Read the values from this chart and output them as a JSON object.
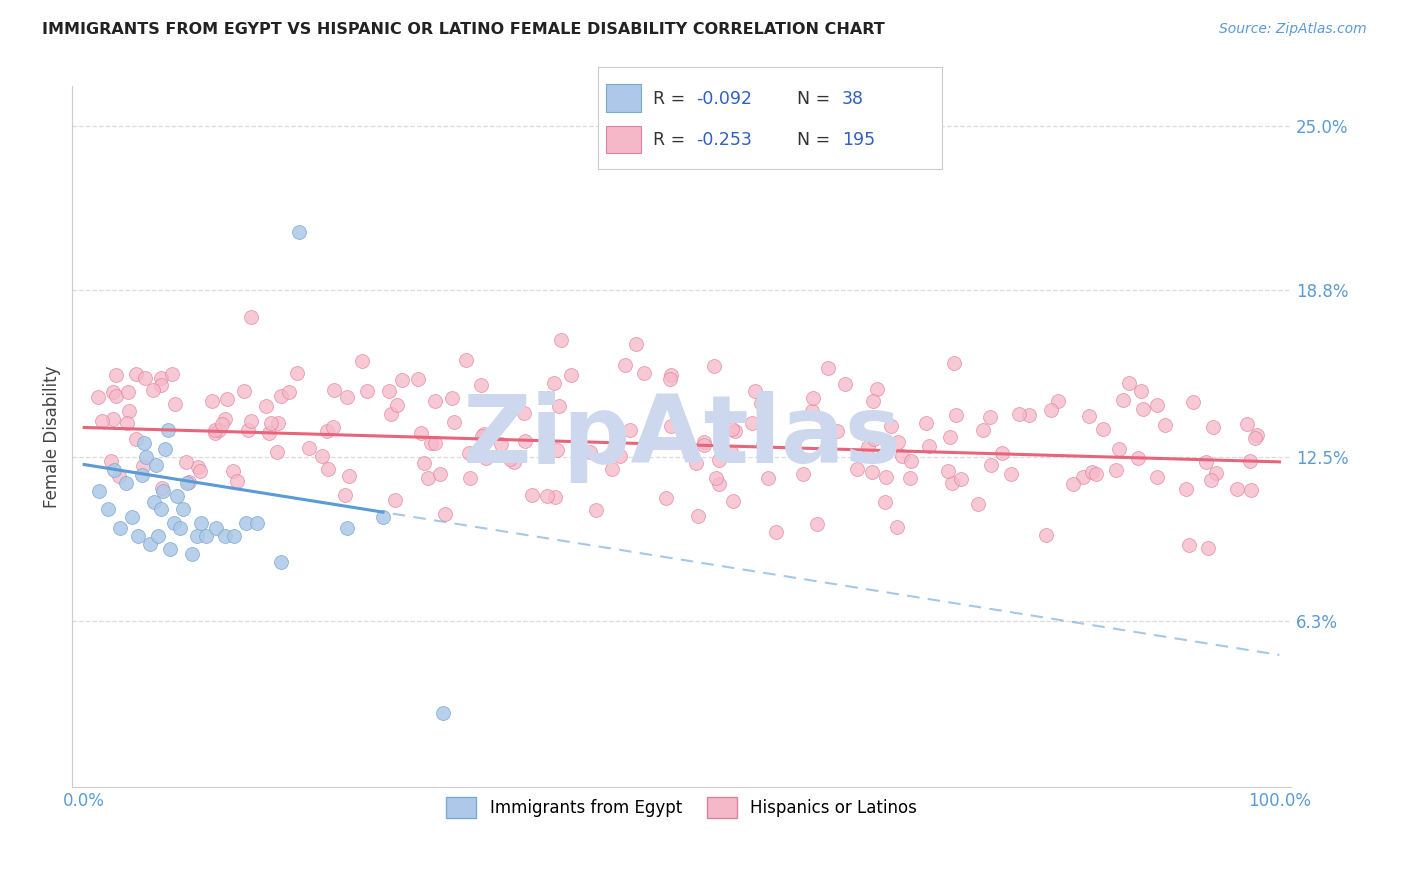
{
  "title": "IMMIGRANTS FROM EGYPT VS HISPANIC OR LATINO FEMALE DISABILITY CORRELATION CHART",
  "source": "Source: ZipAtlas.com",
  "ylabel": "Female Disability",
  "color_egypt": "#adc8e8",
  "color_hispanic": "#f5b8c8",
  "edge_egypt": "#7aaad0",
  "edge_hispanic": "#e080a0",
  "line_color_egypt": "#5b9bd5",
  "line_color_hispanic": "#e8647a",
  "watermark": "ZipAtlas",
  "watermark_color": "#cdd8ee",
  "legend_text_color": "#3060c0",
  "background_color": "#ffffff",
  "grid_color": "#d8d8d8",
  "ytick_color": "#5b9bd5",
  "xtick_color": "#5b9bd5",
  "egypt_x": [
    1.2,
    2.0,
    2.5,
    3.0,
    3.5,
    4.0,
    4.5,
    4.8,
    5.0,
    5.2,
    5.5,
    5.8,
    6.0,
    6.2,
    6.4,
    6.6,
    6.8,
    7.0,
    7.2,
    7.5,
    7.8,
    8.0,
    8.3,
    8.6,
    9.0,
    9.4,
    9.8,
    10.2,
    11.0,
    11.8,
    12.5,
    13.5,
    14.5,
    16.5,
    18.0,
    22.0,
    25.0,
    30.0
  ],
  "egypt_y": [
    11.2,
    10.5,
    12.0,
    9.8,
    11.5,
    10.2,
    9.5,
    11.8,
    13.0,
    12.5,
    9.2,
    10.8,
    12.2,
    9.5,
    10.5,
    11.2,
    12.8,
    13.5,
    9.0,
    10.0,
    11.0,
    9.8,
    10.5,
    11.5,
    8.8,
    9.5,
    10.0,
    9.5,
    9.8,
    9.5,
    9.5,
    10.0,
    10.0,
    8.5,
    21.0,
    9.8,
    10.2,
    2.8
  ],
  "hisp_trend_x0": 0.0,
  "hisp_trend_y0": 13.6,
  "hisp_trend_x1": 100.0,
  "hisp_trend_y1": 12.3,
  "egypt_trend_x0": 0.0,
  "egypt_trend_y0": 12.2,
  "egypt_trend_x1": 100.0,
  "egypt_trend_y1": 5.0,
  "egypt_solid_x1": 25.0,
  "ylim_low": 0.0,
  "ylim_high": 26.5,
  "xlim_low": -1.0,
  "xlim_high": 101.0,
  "ytick_vals": [
    6.3,
    12.5,
    18.8,
    25.0
  ],
  "ytick_labels": [
    "6.3%",
    "12.5%",
    "18.8%",
    "25.0%"
  ],
  "xtick_vals": [
    0,
    20,
    40,
    60,
    80,
    100
  ],
  "xtick_labels": [
    "0.0%",
    "",
    "",
    "",
    "",
    "100.0%"
  ]
}
